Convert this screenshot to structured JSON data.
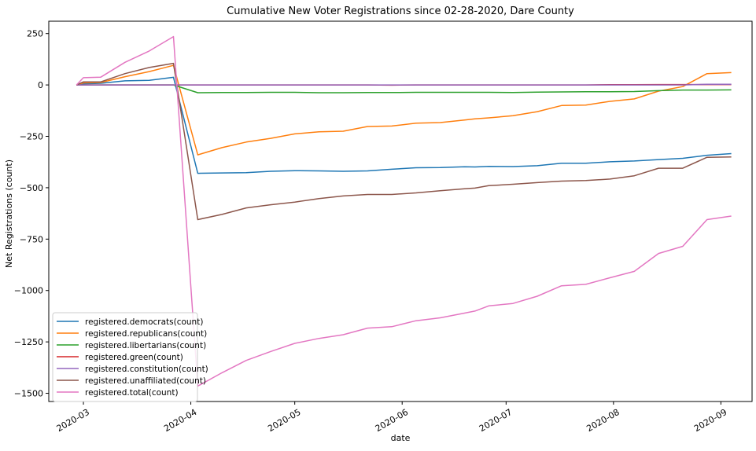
{
  "chart_data": {
    "type": "line",
    "title": "Cumulative New Voter Registrations since 02-28-2020, Dare County",
    "xlabel": "date",
    "ylabel": "Net Registrations (count)",
    "xlim": [
      "2020-02-20",
      "2020-09-10"
    ],
    "ylim": [
      -1540,
      310
    ],
    "grid": false,
    "legend_position": "lower-left",
    "yticks": [
      250,
      0,
      -250,
      -500,
      -750,
      -1000,
      -1250,
      -1500
    ],
    "ytick_labels": [
      "250",
      "0",
      "−250",
      "−500",
      "−750",
      "−1000",
      "−1250",
      "−1500"
    ],
    "xticks": [
      "2020-03-01",
      "2020-04-01",
      "2020-05-01",
      "2020-06-01",
      "2020-07-01",
      "2020-08-01",
      "2020-09-01"
    ],
    "xtick_labels": [
      "2020-03",
      "2020-04",
      "2020-05",
      "2020-06",
      "2020-07",
      "2020-08",
      "2020-09"
    ],
    "x": [
      "2020-02-28",
      "2020-03-01",
      "2020-03-06",
      "2020-03-13",
      "2020-03-20",
      "2020-03-27",
      "2020-04-03",
      "2020-04-10",
      "2020-04-17",
      "2020-04-24",
      "2020-05-01",
      "2020-05-08",
      "2020-05-15",
      "2020-05-22",
      "2020-05-29",
      "2020-06-05",
      "2020-06-12",
      "2020-06-19",
      "2020-06-22",
      "2020-06-26",
      "2020-07-03",
      "2020-07-10",
      "2020-07-17",
      "2020-07-24",
      "2020-07-31",
      "2020-08-07",
      "2020-08-14",
      "2020-08-21",
      "2020-08-28",
      "2020-09-04"
    ],
    "series": [
      {
        "name": "registered.democrats(count)",
        "color": "#1f77b4",
        "values": [
          0,
          5,
          8,
          20,
          22,
          37,
          -430,
          -428,
          -427,
          -420,
          -417,
          -418,
          -420,
          -418,
          -410,
          -403,
          -402,
          -398,
          -399,
          -396,
          -397,
          -393,
          -381,
          -381,
          -374,
          -370,
          -363,
          -357,
          -342,
          -334
        ]
      },
      {
        "name": "registered.republicans(count)",
        "color": "#ff7f0e",
        "values": [
          0,
          10,
          12,
          40,
          65,
          95,
          -340,
          -305,
          -278,
          -260,
          -238,
          -228,
          -225,
          -202,
          -200,
          -186,
          -183,
          -171,
          -165,
          -160,
          -150,
          -130,
          -100,
          -98,
          -80,
          -68,
          -30,
          -8,
          55,
          60
        ]
      },
      {
        "name": "registered.libertarians(count)",
        "color": "#2ca02c",
        "values": [
          0,
          0,
          0,
          0,
          0,
          0,
          -38,
          -37,
          -37,
          -36,
          -36,
          -38,
          -38,
          -37,
          -37,
          -36,
          -36,
          -36,
          -36,
          -36,
          -37,
          -35,
          -34,
          -33,
          -33,
          -32,
          -28,
          -25,
          -25,
          -24
        ]
      },
      {
        "name": "registered.green(count)",
        "color": "#d62728",
        "values": [
          0,
          0,
          0,
          0,
          0,
          0,
          0,
          0,
          0,
          0,
          0,
          0,
          0,
          0,
          -1,
          0,
          0,
          0,
          0,
          0,
          0,
          0,
          0,
          0,
          1,
          1,
          2,
          2,
          2,
          2
        ]
      },
      {
        "name": "registered.constitution(count)",
        "color": "#9467bd",
        "values": [
          0,
          0,
          0,
          0,
          0,
          0,
          0,
          0,
          0,
          0,
          0,
          0,
          0,
          0,
          0,
          0,
          0,
          0,
          0,
          0,
          0,
          0,
          0,
          0,
          0,
          0,
          0,
          0,
          3,
          3
        ]
      },
      {
        "name": "registered.unaffiliated(count)",
        "color": "#8c564b",
        "values": [
          0,
          15,
          15,
          55,
          85,
          105,
          -655,
          -630,
          -598,
          -583,
          -570,
          -553,
          -540,
          -533,
          -533,
          -525,
          -515,
          -505,
          -502,
          -490,
          -483,
          -475,
          -468,
          -465,
          -458,
          -442,
          -405,
          -405,
          -352,
          -350
        ]
      },
      {
        "name": "registered.total(count)",
        "color": "#e377c2",
        "values": [
          0,
          35,
          38,
          110,
          165,
          235,
          -1465,
          -1400,
          -1340,
          -1297,
          -1257,
          -1233,
          -1215,
          -1183,
          -1176,
          -1147,
          -1133,
          -1110,
          -1100,
          -1075,
          -1063,
          -1028,
          -977,
          -970,
          -938,
          -907,
          -820,
          -785,
          -655,
          -638
        ]
      }
    ]
  }
}
